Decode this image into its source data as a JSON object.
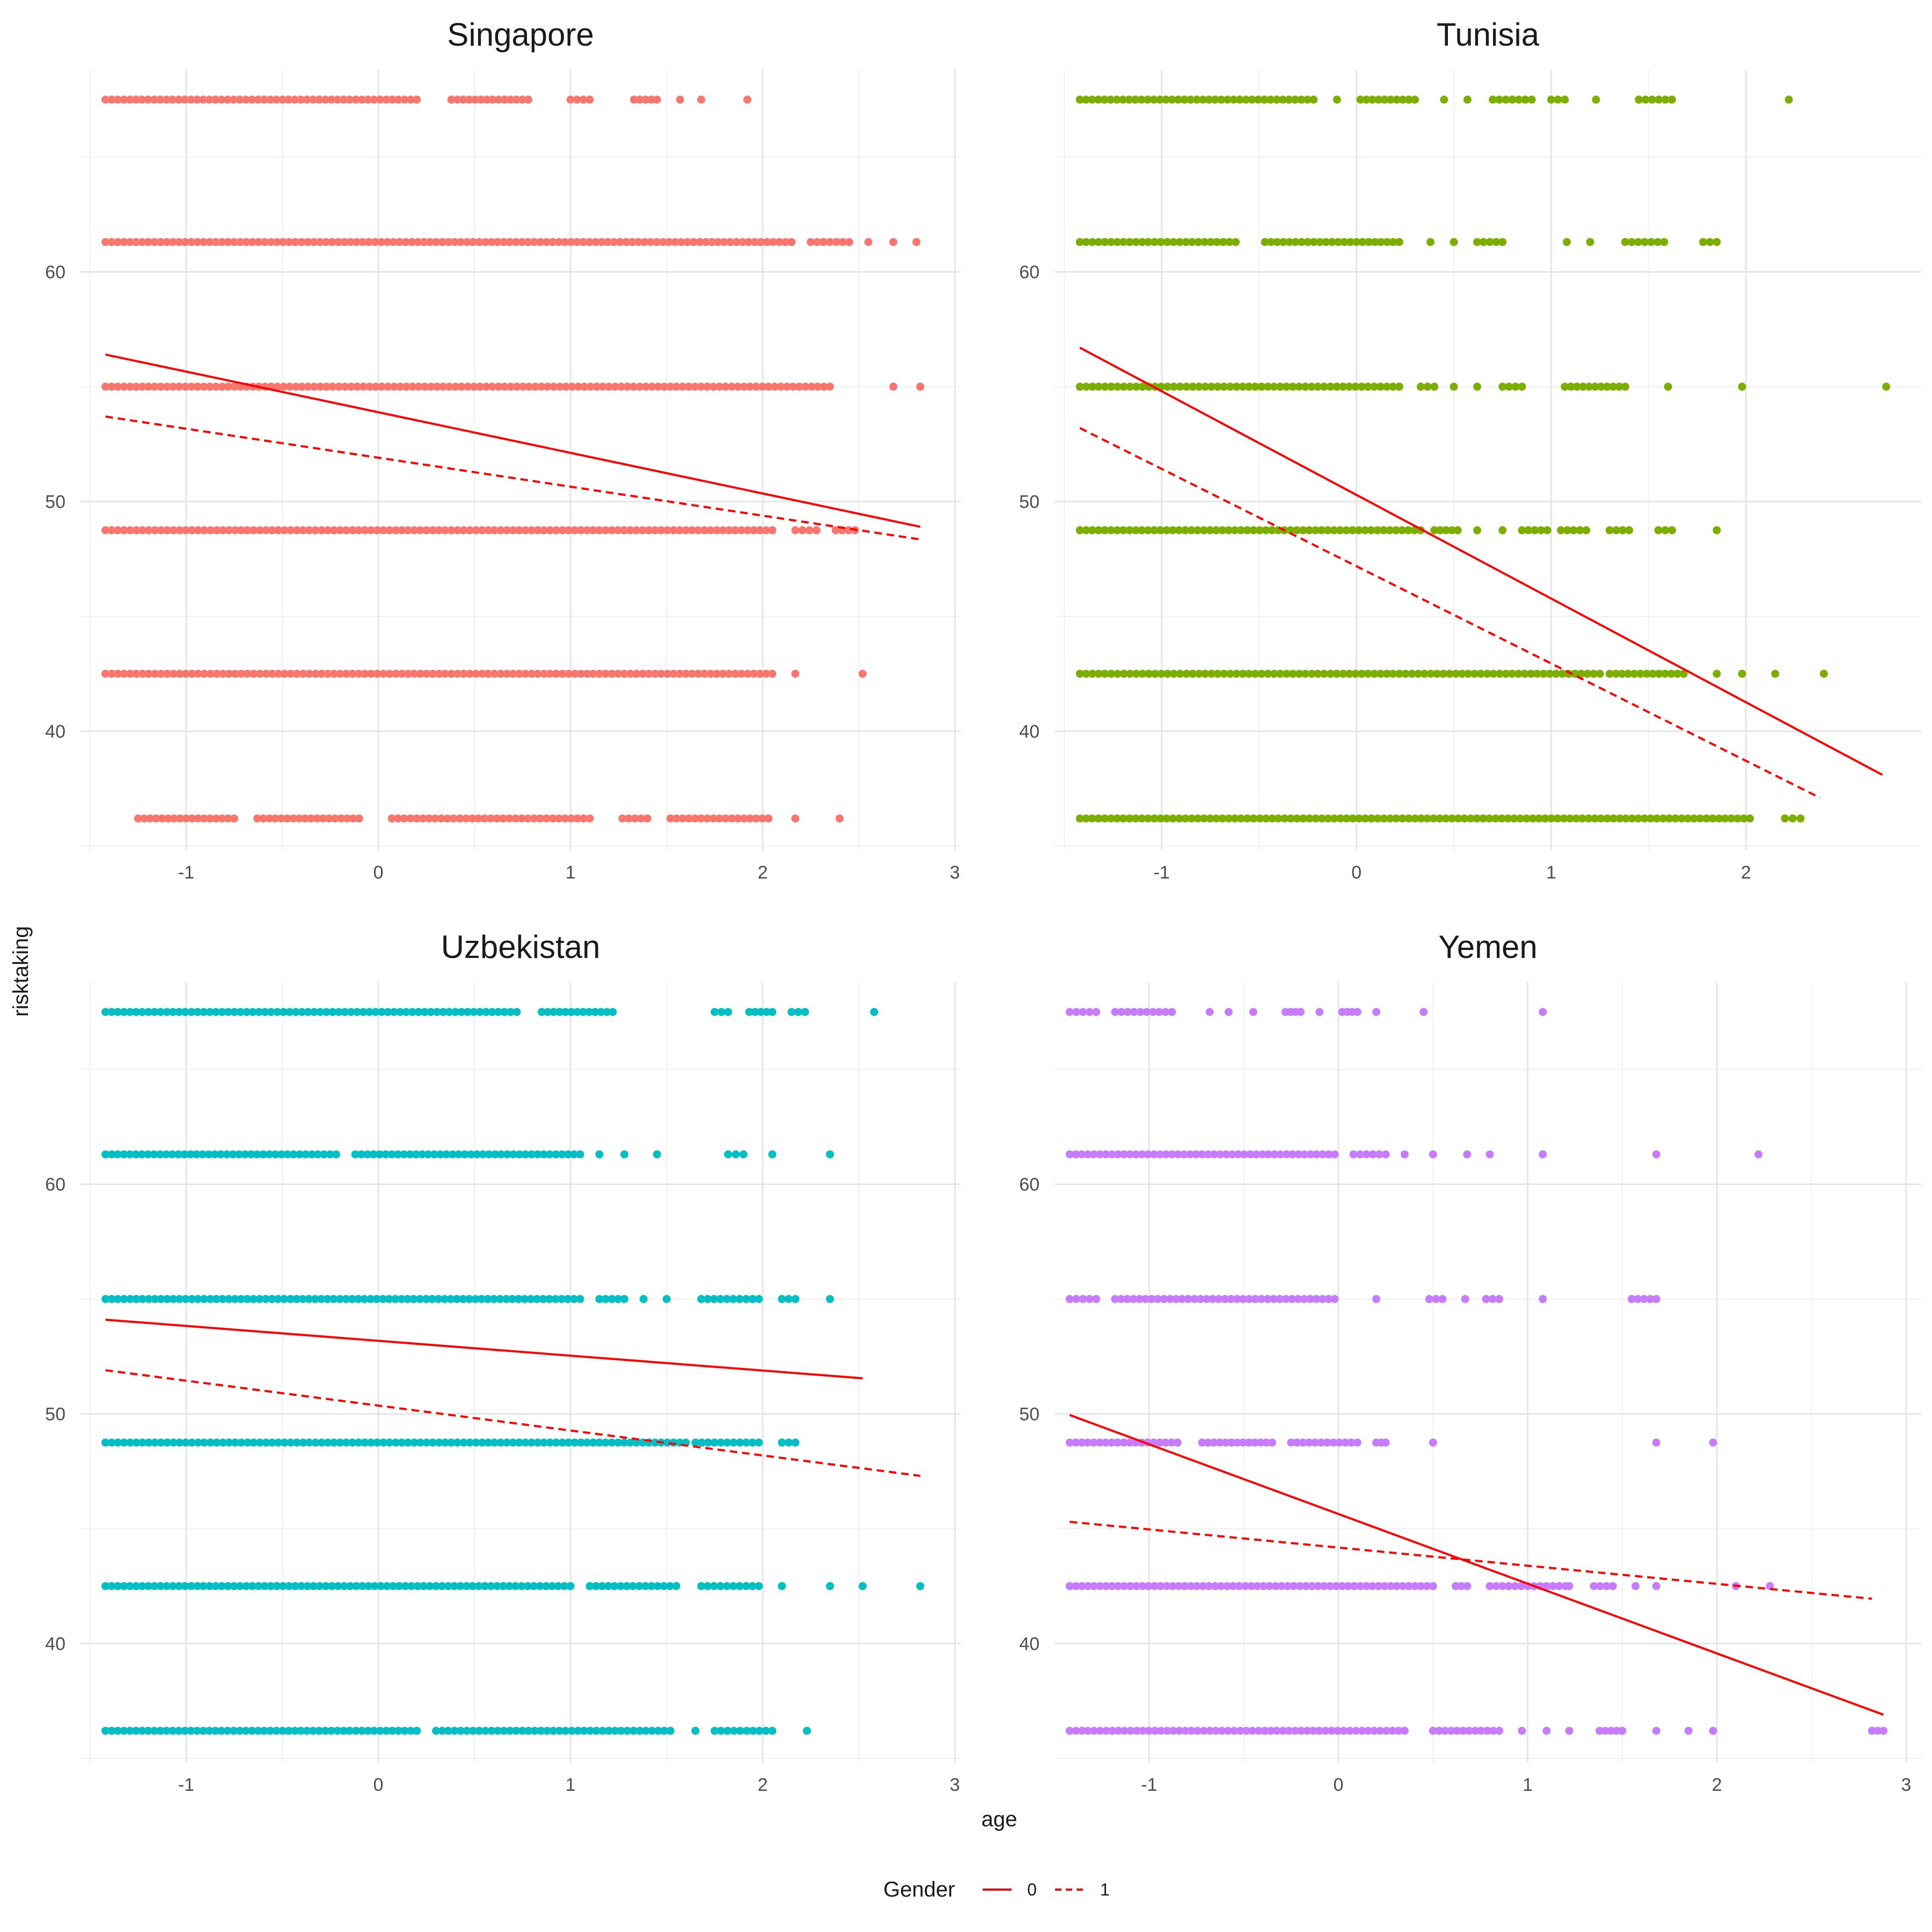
{
  "chart_data": {
    "type": "scatter",
    "xlabel": "age",
    "ylabel": "risktaking",
    "grid": true,
    "legend_position": "bottom",
    "legend": {
      "title": "Gender",
      "entries": [
        {
          "label": "0",
          "linetype": "solid",
          "color": "#ff0000"
        },
        {
          "label": "1",
          "linetype": "dashed",
          "color": "#ff0000"
        }
      ]
    },
    "y_levels": [
      36.2,
      42.5,
      48.75,
      55,
      61.3,
      67.5
    ],
    "ylim": [
      34.8,
      68.8
    ],
    "yticks": [
      40,
      50,
      60
    ],
    "panels": [
      {
        "title": "Singapore",
        "color": "#F8766D",
        "xlim": [
          -1.55,
          3.03
        ],
        "xticks": [
          -1,
          0,
          1,
          2,
          3
        ],
        "rows": [
          {
            "y": 67.5,
            "x": [
              [
                -1.42,
                0.2
              ],
              [
                0.38,
                0.78
              ],
              [
                1.0,
                1.1
              ],
              [
                1.33,
                1.45
              ],
              [
                1.57
              ],
              [
                1.68
              ],
              [
                1.92
              ]
            ]
          },
          {
            "y": 61.3,
            "x": [
              [
                -1.42,
                2.15
              ],
              [
                2.25,
                2.45
              ],
              [
                2.55
              ],
              [
                2.68
              ],
              [
                2.8
              ]
            ]
          },
          {
            "y": 55,
            "x": [
              [
                -1.42,
                2.35
              ],
              [
                2.68
              ],
              [
                2.82
              ]
            ]
          },
          {
            "y": 48.75,
            "x": [
              [
                -1.42,
                2.05
              ],
              [
                2.17,
                2.28
              ],
              [
                2.38,
                2.48
              ]
            ]
          },
          {
            "y": 42.5,
            "x": [
              [
                -1.42,
                2.05
              ],
              [
                2.17
              ],
              [
                2.52
              ]
            ]
          },
          {
            "y": 36.2,
            "x": [
              [
                -1.25,
                -0.75
              ],
              [
                -0.63,
                -0.1
              ],
              [
                0.07,
                1.1
              ],
              [
                1.27,
                1.4
              ],
              [
                1.52,
                2.03
              ],
              [
                2.17
              ],
              [
                2.4
              ]
            ]
          }
        ],
        "lines": [
          {
            "gender": "0",
            "x": [
              -1.42,
              2.82
            ],
            "y": [
              56.4,
              48.9
            ]
          },
          {
            "gender": "1",
            "x": [
              -1.42,
              2.82
            ],
            "y": [
              53.7,
              48.35
            ]
          }
        ]
      },
      {
        "title": "Tunisia",
        "color": "#7CAE00",
        "xlim": [
          -1.55,
          2.9
        ],
        "xticks": [
          -1,
          0,
          1,
          2
        ],
        "rows": [
          {
            "y": 67.5,
            "x": [
              [
                -1.42,
                -0.22
              ],
              [
                -0.1
              ],
              [
                0.02,
                0.3
              ],
              [
                0.45
              ],
              [
                0.57
              ],
              [
                0.7,
                0.9
              ],
              [
                1.0,
                1.07
              ],
              [
                1.23
              ],
              [
                1.45,
                1.62
              ],
              [
                2.22
              ]
            ]
          },
          {
            "y": 61.3,
            "x": [
              [
                -1.42,
                -0.62
              ],
              [
                -0.47,
                0.22
              ],
              [
                0.38
              ],
              [
                0.5
              ],
              [
                0.62,
                0.75
              ],
              [
                1.08
              ],
              [
                1.2
              ],
              [
                1.38,
                1.58
              ],
              [
                1.78,
                1.85
              ]
            ]
          },
          {
            "y": 55,
            "x": [
              [
                -1.42,
                0.22
              ],
              [
                0.33,
                0.4
              ],
              [
                0.5
              ],
              [
                0.62
              ],
              [
                0.75,
                0.85
              ],
              [
                1.07,
                1.38
              ],
              [
                1.6
              ],
              [
                1.98
              ],
              [
                2.72
              ]
            ]
          },
          {
            "y": 48.75,
            "x": [
              [
                -1.42,
                0.33
              ],
              [
                0.4,
                0.52
              ],
              [
                0.62
              ],
              [
                0.75
              ],
              [
                0.85,
                0.98
              ],
              [
                1.05,
                1.18
              ],
              [
                1.3,
                1.4
              ],
              [
                1.55,
                1.62
              ],
              [
                1.85
              ]
            ]
          },
          {
            "y": 42.5,
            "x": [
              [
                -1.42,
                1.25
              ],
              [
                1.3,
                1.68
              ],
              [
                1.85
              ],
              [
                1.98
              ],
              [
                2.15
              ],
              [
                2.4
              ]
            ]
          },
          {
            "y": 36.2,
            "x": [
              [
                -1.42,
                2.02
              ],
              [
                2.2,
                2.28
              ]
            ]
          }
        ],
        "lines": [
          {
            "gender": "0",
            "x": [
              -1.42,
              2.7
            ],
            "y": [
              56.7,
              38.1
            ]
          },
          {
            "gender": "1",
            "x": [
              -1.42,
              2.38
            ],
            "y": [
              53.2,
              37.1
            ]
          }
        ]
      },
      {
        "title": "Uzbekistan",
        "color": "#00BFC4",
        "xlim": [
          -1.55,
          3.03
        ],
        "xticks": [
          -1,
          0,
          1,
          2,
          3
        ],
        "rows": [
          {
            "y": 67.5,
            "x": [
              [
                -1.42,
                0.72
              ],
              [
                0.85,
                1.22
              ],
              [
                1.75,
                1.82
              ],
              [
                1.93,
                2.05
              ],
              [
                2.15,
                2.22
              ],
              [
                2.58
              ]
            ]
          },
          {
            "y": 61.3,
            "x": [
              [
                -1.42,
                -0.22
              ],
              [
                -0.12,
                1.05
              ],
              [
                1.15
              ],
              [
                1.28
              ],
              [
                1.45
              ],
              [
                1.82,
                1.9
              ],
              [
                2.05
              ],
              [
                2.35
              ]
            ]
          },
          {
            "y": 55,
            "x": [
              [
                -1.42,
                1.05
              ],
              [
                1.15,
                1.28
              ],
              [
                1.38
              ],
              [
                1.5
              ],
              [
                1.68,
                1.98
              ],
              [
                2.1,
                2.17
              ],
              [
                2.35
              ]
            ]
          },
          {
            "y": 48.75,
            "x": [
              [
                -1.42,
                1.6
              ],
              [
                1.65,
                1.98
              ],
              [
                2.1,
                2.17
              ]
            ]
          },
          {
            "y": 42.5,
            "x": [
              [
                -1.42,
                1.0
              ],
              [
                1.1,
                1.55
              ],
              [
                1.68,
                1.98
              ],
              [
                2.1
              ],
              [
                2.35
              ],
              [
                2.52
              ],
              [
                2.82
              ]
            ]
          },
          {
            "y": 36.2,
            "x": [
              [
                -1.42,
                0.2
              ],
              [
                0.3,
                1.52
              ],
              [
                1.65
              ],
              [
                1.75,
                2.05
              ],
              [
                2.23
              ]
            ]
          }
        ],
        "lines": [
          {
            "gender": "0",
            "x": [
              -1.42,
              2.52
            ],
            "y": [
              54.1,
              51.55
            ]
          },
          {
            "gender": "1",
            "x": [
              -1.42,
              2.82
            ],
            "y": [
              51.9,
              47.3
            ]
          }
        ]
      },
      {
        "title": "Yemen",
        "color": "#C77CFF",
        "xlim": [
          -1.5,
          3.08
        ],
        "xticks": [
          -1,
          0,
          1,
          2,
          3
        ],
        "rows": [
          {
            "y": 67.5,
            "x": [
              [
                -1.42,
                -1.28
              ],
              [
                -1.18,
                -0.88
              ],
              [
                -0.68
              ],
              [
                -0.58
              ],
              [
                -0.45
              ],
              [
                -0.28,
                -0.2
              ],
              [
                -0.1
              ],
              [
                0.02,
                0.1
              ],
              [
                0.2
              ],
              [
                0.45
              ],
              [
                1.08
              ]
            ]
          },
          {
            "y": 61.3,
            "x": [
              [
                -1.42,
                -0.02
              ],
              [
                0.08,
                0.25
              ],
              [
                0.35
              ],
              [
                0.5
              ],
              [
                0.68
              ],
              [
                0.8
              ],
              [
                1.08
              ],
              [
                1.68
              ],
              [
                2.22
              ]
            ]
          },
          {
            "y": 55,
            "x": [
              [
                -1.42,
                -1.28
              ],
              [
                -1.18,
                -0.02
              ],
              [
                0.2
              ],
              [
                0.48,
                0.55
              ],
              [
                0.67
              ],
              [
                0.78,
                0.85
              ],
              [
                1.08
              ],
              [
                1.55,
                1.68
              ]
            ]
          },
          {
            "y": 48.75,
            "x": [
              [
                -1.42,
                -0.85
              ],
              [
                -0.72,
                -0.35
              ],
              [
                -0.25,
                0.1
              ],
              [
                0.2,
                0.25
              ],
              [
                0.5
              ],
              [
                1.68
              ],
              [
                1.98
              ]
            ]
          },
          {
            "y": 42.5,
            "x": [
              [
                -1.42,
                0.5
              ],
              [
                0.62,
                0.68
              ],
              [
                0.8,
                1.2
              ],
              [
                1.22
              ],
              [
                1.35,
                1.45
              ],
              [
                1.57
              ],
              [
                1.68
              ],
              [
                2.1
              ],
              [
                2.28
              ]
            ]
          },
          {
            "y": 36.2,
            "x": [
              [
                -1.42,
                0.35
              ],
              [
                0.5,
                0.85
              ],
              [
                0.97
              ],
              [
                1.1
              ],
              [
                1.22
              ],
              [
                1.38,
                1.5
              ],
              [
                1.68
              ],
              [
                1.85
              ],
              [
                1.98
              ],
              [
                2.82,
                2.88
              ]
            ]
          }
        ],
        "lines": [
          {
            "gender": "0",
            "x": [
              -1.42,
              2.88
            ],
            "y": [
              49.95,
              36.9
            ]
          },
          {
            "gender": "1",
            "x": [
              -1.42,
              2.82
            ],
            "y": [
              45.3,
              41.95
            ]
          }
        ]
      }
    ]
  }
}
